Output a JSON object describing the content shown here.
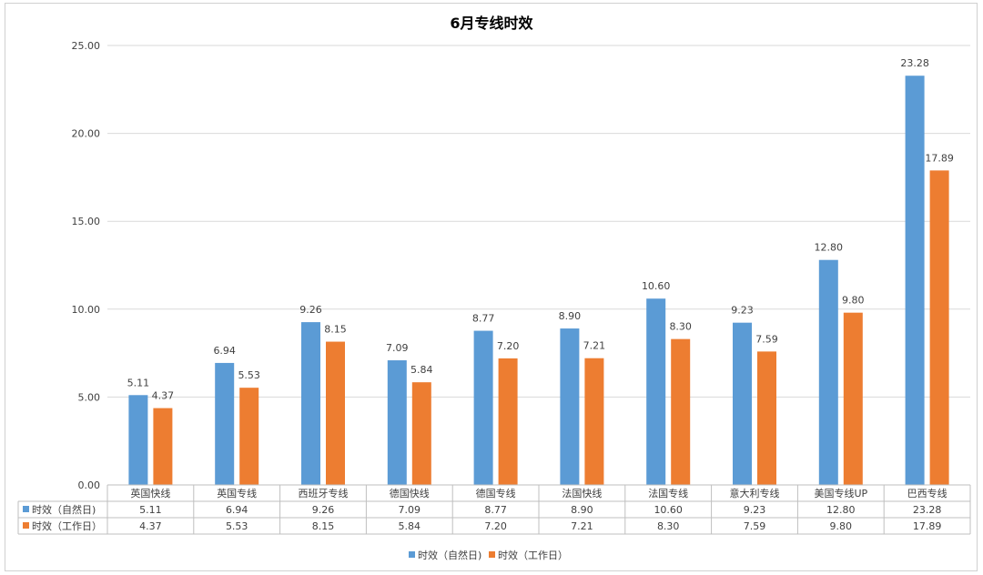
{
  "chart_data": {
    "type": "bar",
    "title": "6月专线时效",
    "categories": [
      "英国快线",
      "英国专线",
      "西班牙专线",
      "德国快线",
      "德国专线",
      "法国快线",
      "法国专线",
      "意大利专线",
      "美国专线UP",
      "巴西专线"
    ],
    "series": [
      {
        "name": "时效（自然日)",
        "color": "#5B9BD5",
        "values": [
          5.11,
          6.94,
          9.26,
          7.09,
          8.77,
          8.9,
          10.6,
          9.23,
          12.8,
          23.28
        ]
      },
      {
        "name": "时效（工作日）",
        "color": "#ED7D31",
        "values": [
          4.37,
          5.53,
          8.15,
          5.84,
          7.2,
          7.21,
          8.3,
          7.59,
          9.8,
          17.89
        ]
      }
    ],
    "ylim": [
      0,
      25
    ],
    "yticks": [
      0,
      5,
      10,
      15,
      20,
      25
    ],
    "grid": true,
    "data_table": true,
    "legend_position": "bottom",
    "xlabel": "",
    "ylabel": ""
  }
}
